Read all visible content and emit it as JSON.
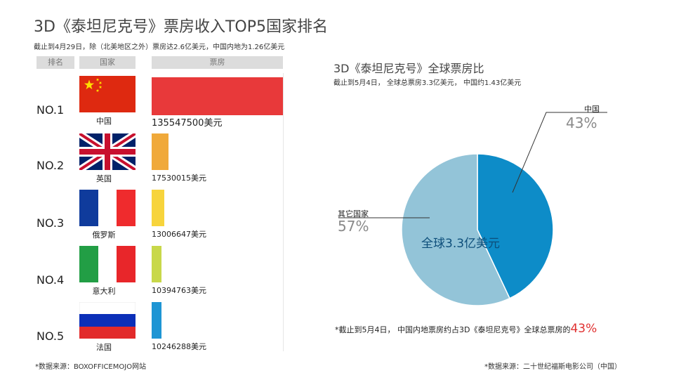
{
  "title": "3D《泰坦尼克号》票房收入TOP5国家排名",
  "subtitle": "截止到4月29日，除（北美地区之外）票房达2.6亿美元，中国内地为1.26亿美元",
  "table_headers": {
    "rank": "排名",
    "country": "国家",
    "box_office": "票房"
  },
  "unit": "美元",
  "source_left": "*数据来源：BOXOFFICEMOJO网站",
  "source_right": "*数据来源：二十世纪福斯电影公司（中国）",
  "icons": [
    "flag-china-icon",
    "flag-uk-icon",
    "flag-france-icon",
    "flag-italy-icon",
    "flag-russia-icon"
  ],
  "chart_data": [
    {
      "type": "bar",
      "orientation": "horizontal",
      "title": "3D《泰坦尼克号》票房收入TOP5国家排名",
      "categories": [
        "中国",
        "英国",
        "俄罗斯",
        "意大利",
        "法国"
      ],
      "ranks": [
        "NO.1",
        "NO.2",
        "NO.3",
        "NO.4",
        "NO.5"
      ],
      "values": [
        135547500,
        17530015,
        13006647,
        10394763,
        10246288
      ],
      "value_labels": [
        "135547500美元",
        "17530015美元",
        "13006647美元",
        "10394763美元",
        "10246288美元"
      ],
      "colors": [
        "#e8393a",
        "#f0a93a",
        "#f7d43c",
        "#c8d84a",
        "#1e95d4"
      ]
    },
    {
      "type": "pie",
      "title": "3D《泰坦尼克号》全球票房比",
      "subtitle": "截止到5月4日，  全球总票房3.3亿美元，  中国约1.43亿美元",
      "center_label": "全球3.3亿美元",
      "slices": [
        {
          "label": "中国",
          "value": 43,
          "pct_label": "43%",
          "color": "#0d8cc8"
        },
        {
          "label": "其它国家",
          "value": 57,
          "pct_label": "57%",
          "color": "#93c4d8"
        }
      ],
      "note": "*截止到5月4日，  中国内地票房约占3D《泰坦尼克号》全球总票房的",
      "note_highlight": "43%"
    }
  ]
}
